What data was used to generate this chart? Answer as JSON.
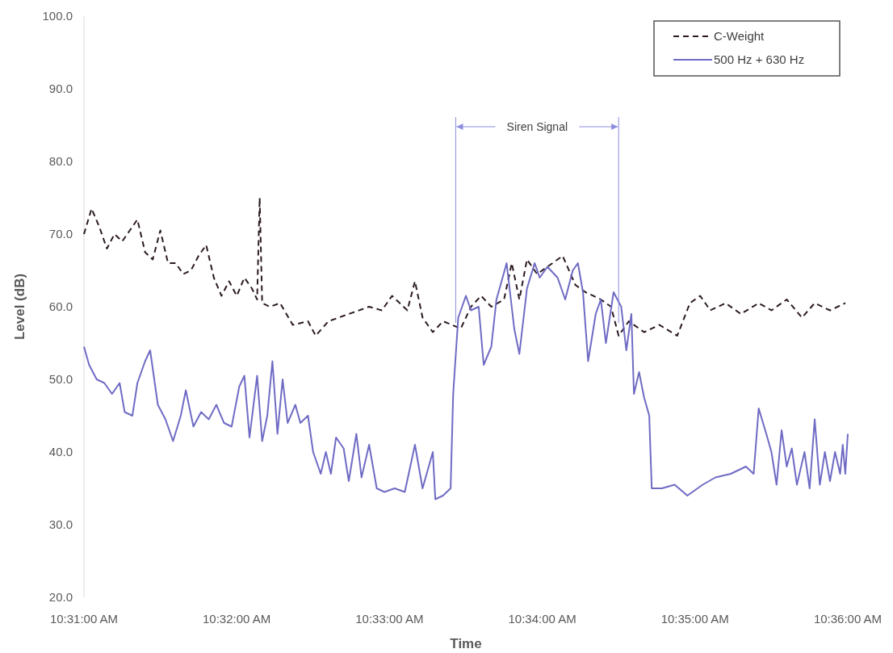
{
  "chart_data": {
    "type": "line",
    "xlabel": "Time",
    "ylabel": "Level (dB)",
    "xlim": [
      10.51667,
      10.6
    ],
    "xticks": [
      {
        "value": 10.51667,
        "label": "10:31:00 AM"
      },
      {
        "value": 10.53333,
        "label": "10:32:00 AM"
      },
      {
        "value": 10.55,
        "label": "10:33:00 AM"
      },
      {
        "value": 10.56667,
        "label": "10:34:00 AM"
      },
      {
        "value": 10.58333,
        "label": "10:35:00 AM"
      },
      {
        "value": 10.6,
        "label": "10:36:00 AM"
      }
    ],
    "ylim": [
      20,
      100
    ],
    "yticks": [
      {
        "value": 20,
        "label": "20.0"
      },
      {
        "value": 30,
        "label": "30.0"
      },
      {
        "value": 40,
        "label": "40.0"
      },
      {
        "value": 50,
        "label": "50.0"
      },
      {
        "value": 60,
        "label": "60.0"
      },
      {
        "value": 70,
        "label": "70.0"
      },
      {
        "value": 80,
        "label": "80.0"
      },
      {
        "value": 90,
        "label": "90.0"
      },
      {
        "value": 100,
        "label": "100.0"
      }
    ],
    "grid": false,
    "legend": "top right",
    "marker": "none",
    "series": [
      {
        "name": "C-Weight",
        "color": "#2b1a22",
        "line_style": "dashed",
        "x": [
          10.51667,
          10.5175,
          10.51834,
          10.51917,
          10.52,
          10.52084,
          10.52167,
          10.5225,
          10.52334,
          10.52417,
          10.525,
          10.52584,
          10.52667,
          10.5275,
          10.52834,
          10.52917,
          10.53,
          10.53084,
          10.53167,
          10.5325,
          10.53334,
          10.53417,
          10.535,
          10.53556,
          10.53584,
          10.53611,
          10.53695,
          10.53806,
          10.53945,
          10.54111,
          10.54195,
          10.54334,
          10.54556,
          10.54778,
          10.54917,
          10.55028,
          10.55195,
          10.55278,
          10.55361,
          10.55473,
          10.55584,
          10.55778,
          10.55889,
          10.56,
          10.56111,
          10.5625,
          10.56334,
          10.56417,
          10.565,
          10.56611,
          10.56723,
          10.56889,
          10.57028,
          10.57139,
          10.57306,
          10.57417,
          10.575,
          10.57611,
          10.57778,
          10.57945,
          10.58139,
          10.58278,
          10.58389,
          10.585,
          10.58667,
          10.58834,
          10.59028,
          10.59167,
          10.59334,
          10.595,
          10.59639,
          10.59806,
          10.59973
        ],
        "values": [
          70,
          73.5,
          71,
          68,
          70,
          69,
          70.5,
          72,
          67.5,
          66.5,
          70.5,
          66,
          66,
          64.5,
          65,
          67,
          68.5,
          64,
          61.5,
          63.5,
          61.5,
          64,
          62.5,
          61,
          75,
          60.5,
          60,
          60.5,
          57.5,
          58,
          56,
          58,
          59,
          60,
          59.5,
          61.5,
          59.5,
          63.5,
          58.5,
          56.5,
          58,
          57,
          60,
          61.5,
          60,
          61,
          66,
          61,
          66.5,
          64.5,
          65.5,
          67,
          63,
          62,
          61,
          60,
          56,
          58,
          56.5,
          57.5,
          56,
          60.5,
          61.5,
          59.5,
          60.5,
          59,
          60.5,
          59.5,
          61,
          58.5,
          60.5,
          59.5,
          60.5
        ]
      },
      {
        "name": "500 Hz + 630 Hz",
        "color": "#6f6bc4",
        "line_style": "solid",
        "x": [
          10.51667,
          10.51723,
          10.51806,
          10.51889,
          10.51973,
          10.52056,
          10.52111,
          10.52195,
          10.5225,
          10.52334,
          10.52389,
          10.52473,
          10.52556,
          10.52639,
          10.52723,
          10.52778,
          10.52861,
          10.52945,
          10.53028,
          10.53111,
          10.53195,
          10.53278,
          10.53361,
          10.53417,
          10.53473,
          10.53556,
          10.53611,
          10.53667,
          10.53723,
          10.53778,
          10.53834,
          10.53889,
          10.53973,
          10.54028,
          10.54111,
          10.54167,
          10.5425,
          10.54306,
          10.54361,
          10.54417,
          10.545,
          10.54556,
          10.54639,
          10.54695,
          10.54778,
          10.54861,
          10.54945,
          10.55056,
          10.55167,
          10.55278,
          10.55361,
          10.55473,
          10.555,
          10.55584,
          10.55667,
          10.55695,
          10.5575,
          10.55834,
          10.55889,
          10.55973,
          10.56028,
          10.56111,
          10.56167,
          10.56223,
          10.56278,
          10.56361,
          10.56417,
          10.565,
          10.56584,
          10.56639,
          10.56723,
          10.56834,
          10.56917,
          10.57,
          10.57056,
          10.57111,
          10.57167,
          10.5725,
          10.57306,
          10.57361,
          10.57445,
          10.57528,
          10.57584,
          10.57639,
          10.57667,
          10.57723,
          10.57778,
          10.57834,
          10.57861,
          10.57973,
          10.58111,
          10.5825,
          10.58417,
          10.58556,
          10.58723,
          10.58889,
          10.58973,
          10.59028,
          10.59111,
          10.59167,
          10.59223,
          10.59278,
          10.59334,
          10.59389,
          10.59445,
          10.59528,
          10.59584,
          10.59639,
          10.59695,
          10.5975,
          10.59806,
          10.59861,
          10.59917,
          10.59945,
          10.59973,
          10.6
        ],
        "values": [
          54.5,
          52,
          50,
          49.5,
          48,
          49.5,
          45.5,
          45,
          49.5,
          52.5,
          54,
          46.5,
          44.5,
          41.5,
          45,
          48.5,
          43.5,
          45.5,
          44.5,
          46.5,
          44,
          43.5,
          49,
          50.5,
          42,
          50.5,
          41.5,
          45,
          52.5,
          42.5,
          50,
          44,
          46.5,
          44,
          45,
          40,
          37,
          40,
          37,
          42,
          40.5,
          36,
          42.5,
          36.5,
          41,
          35,
          34.5,
          35,
          34.5,
          41,
          35,
          40,
          33.5,
          34,
          35,
          48,
          58.5,
          61.5,
          59.5,
          60,
          52,
          54.5,
          61,
          63.5,
          66,
          57,
          53.5,
          62.5,
          66,
          64,
          65.5,
          64,
          61,
          65,
          66,
          62,
          52.5,
          59,
          61,
          55,
          62,
          60,
          54,
          59,
          48,
          51,
          47.5,
          45,
          35,
          35,
          35.5,
          34,
          35.5,
          36.5,
          37,
          38,
          37,
          46,
          42.5,
          40,
          35.5,
          43,
          38,
          40.5,
          35.5,
          40,
          35,
          44.5,
          35.5,
          40,
          36,
          40,
          37,
          41,
          37,
          42.5
        ]
      }
    ],
    "ref_lines": [
      {
        "axis": "x",
        "value": 10.55723,
        "label": "Siren Signal",
        "color": "#8c8ce0"
      },
      {
        "axis": "x",
        "value": 10.575,
        "color": "#8c8ce0"
      }
    ]
  }
}
